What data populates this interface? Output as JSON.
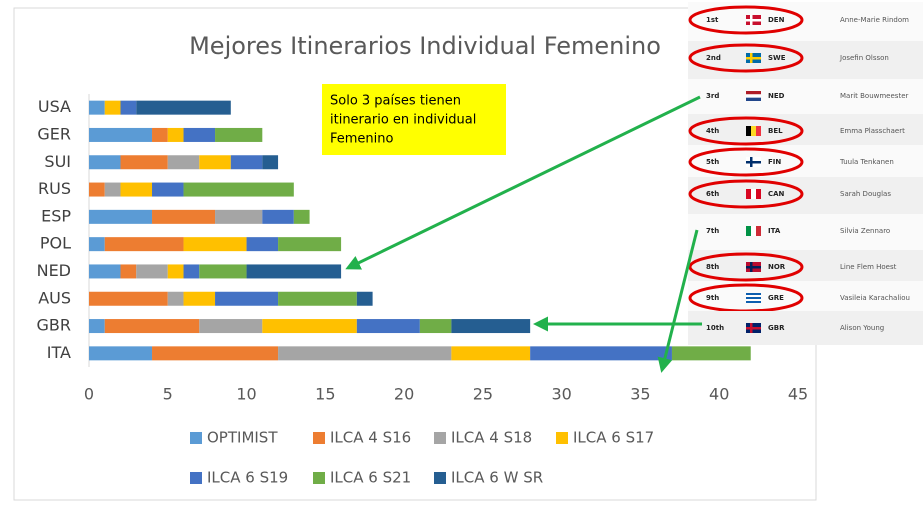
{
  "chart_data": {
    "type": "bar",
    "orientation": "horizontal",
    "stacked": true,
    "title": "Mejores Itinerarios Individual Femenino",
    "annotation": [
      "Solo 3 países tienen",
      "itinerario en individual",
      "Femenino"
    ],
    "categories": [
      "USA",
      "GER",
      "SUI",
      "RUS",
      "ESP",
      "POL",
      "NED",
      "AUS",
      "GBR",
      "ITA"
    ],
    "series": [
      {
        "name": "OPTIMIST",
        "color": "#5b9bd5",
        "values": [
          1,
          4,
          2,
          0,
          4,
          1,
          2,
          0,
          1,
          4
        ]
      },
      {
        "name": "ILCA 4 S16",
        "color": "#ed7d31",
        "values": [
          0,
          1,
          3,
          1,
          4,
          5,
          1,
          5,
          6,
          8
        ]
      },
      {
        "name": "ILCA 4 S18",
        "color": "#a5a5a5",
        "values": [
          0,
          0,
          2,
          1,
          3,
          0,
          2,
          1,
          4,
          11
        ]
      },
      {
        "name": "ILCA 6 S17",
        "color": "#ffc000",
        "values": [
          1,
          1,
          2,
          2,
          0,
          4,
          1,
          2,
          6,
          5
        ]
      },
      {
        "name": "ILCA 6 S19",
        "color": "#4472c4",
        "values": [
          1,
          2,
          2,
          2,
          2,
          2,
          1,
          4,
          4,
          9
        ]
      },
      {
        "name": "ILCA 6 S21",
        "color": "#70ad47",
        "values": [
          0,
          3,
          0,
          7,
          1,
          4,
          3,
          5,
          2,
          5
        ]
      },
      {
        "name": "ILCA 6 W SR",
        "color": "#255e91",
        "values": [
          6,
          0,
          1,
          0,
          0,
          0,
          6,
          1,
          5,
          0
        ]
      }
    ],
    "xlim": [
      0,
      45
    ],
    "xticks": [
      0,
      5,
      10,
      15,
      20,
      25,
      30,
      35,
      40,
      45
    ],
    "grid": false
  },
  "ranking": [
    {
      "rank": "1st",
      "country": "DEN",
      "name": "Anne-Marie Rindom"
    },
    {
      "rank": "2nd",
      "country": "SWE",
      "name": "Josefin Olsson"
    },
    {
      "rank": "3rd",
      "country": "NED",
      "name": "Marit Bouwmeester"
    },
    {
      "rank": "4th",
      "country": "BEL",
      "name": "Emma Plasschaert"
    },
    {
      "rank": "5th",
      "country": "FIN",
      "name": "Tuula Tenkanen"
    },
    {
      "rank": "6th",
      "country": "CAN",
      "name": "Sarah Douglas"
    },
    {
      "rank": "7th",
      "country": "ITA",
      "name": "Silvia Zennaro"
    },
    {
      "rank": "8th",
      "country": "NOR",
      "name": "Line Flem Hoest"
    },
    {
      "rank": "9th",
      "country": "GRE",
      "name": "Vasileia Karachaliou"
    },
    {
      "rank": "10th",
      "country": "GBR",
      "name": "Alison Young"
    }
  ]
}
